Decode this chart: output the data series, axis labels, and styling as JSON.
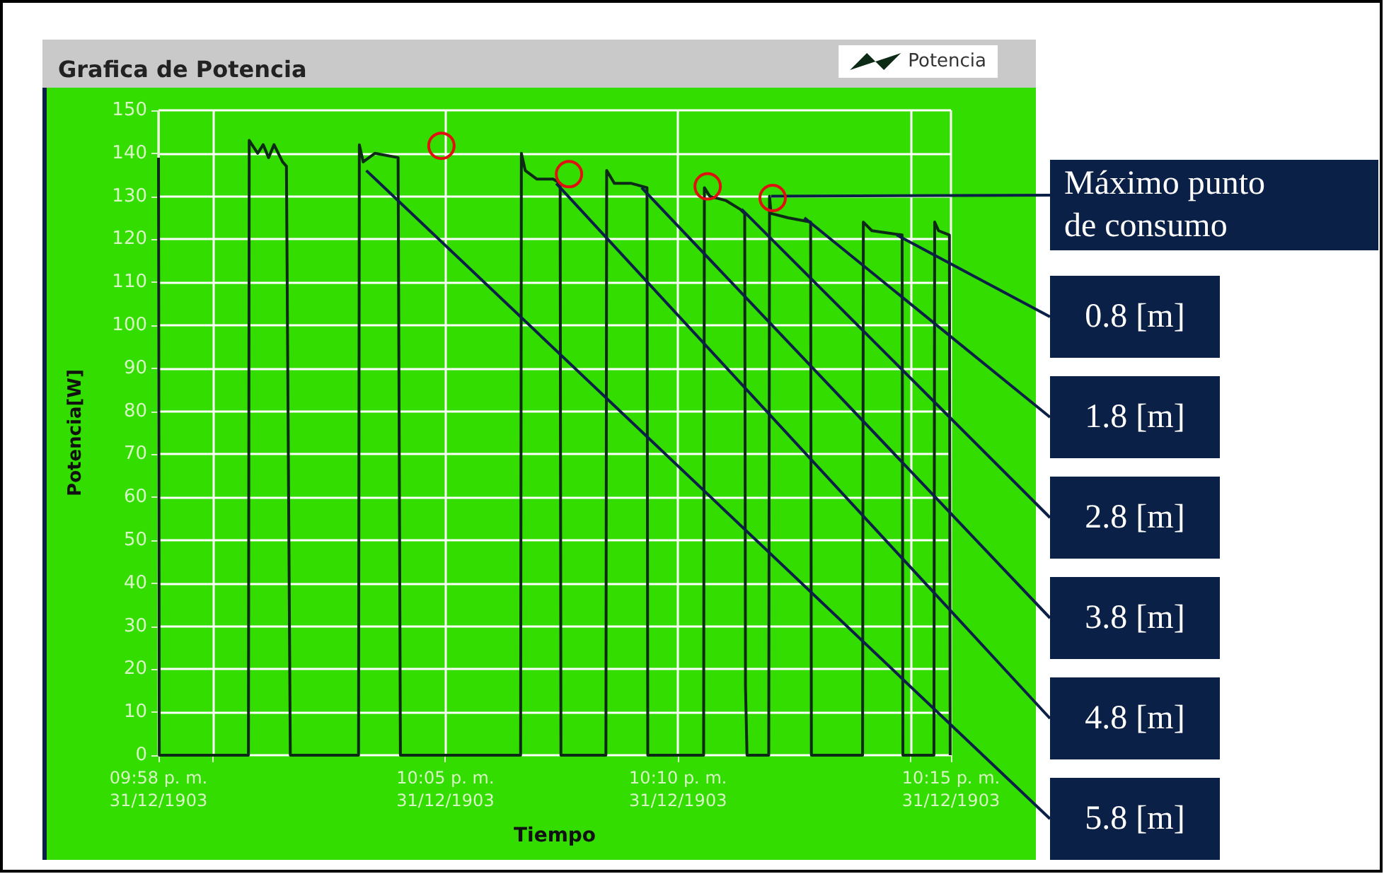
{
  "chart_data": {
    "type": "line",
    "title": "Grafica de Potencia",
    "xlabel": "Tiempo",
    "ylabel": "Potencia[W]",
    "xlim": [
      "1903-12-31T21:58:50",
      "1903-12-31T22:15:52"
    ],
    "ylim": [
      0,
      150
    ],
    "xticks": [
      {
        "value": "1903-12-31T21:58:50",
        "label": "09:58 p. m.\n31/12/1903"
      },
      {
        "value": "1903-12-31T22:00",
        "label": null
      },
      {
        "value": "1903-12-31T22:05",
        "label": "10:05 p. m.\n31/12/1903"
      },
      {
        "value": "1903-12-31T22:10",
        "label": "10:10 p. m.\n31/12/1903"
      },
      {
        "value": "1903-12-31T22:15",
        "label": null
      },
      {
        "value": "1903-12-31T22:15:52",
        "label": "10:15 p. m.\n31/12/1903"
      }
    ],
    "yticks": [
      0,
      10,
      20,
      30,
      40,
      50,
      60,
      70,
      80,
      90,
      100,
      110,
      120,
      130,
      140,
      150
    ],
    "grid": true,
    "legend": "top right",
    "marker": "none",
    "line_style": "solid",
    "series": [
      {
        "name": "Potencia",
        "color": "#0d2a16",
        "x": [
          "1903-12-31T21:58:50",
          "1903-12-31T21:58:51",
          "1903-12-31T22:00:46",
          "1903-12-31T22:00:47",
          "1903-12-31T22:00:58",
          "1903-12-31T22:01:05",
          "1903-12-31T22:01:12",
          "1903-12-31T22:01:19",
          "1903-12-31T22:01:30",
          "1903-12-31T22:01:35",
          "1903-12-31T22:01:40",
          "1903-12-31T22:03:08",
          "1903-12-31T22:03:09",
          "1903-12-31T22:03:14",
          "1903-12-31T22:03:29",
          "1903-12-31T22:03:59",
          "1903-12-31T22:04:02",
          "1903-12-31T22:06:37",
          "1903-12-31T22:06:38",
          "1903-12-31T22:06:43",
          "1903-12-31T22:06:58",
          "1903-12-31T22:07:19",
          "1903-12-31T22:07:28",
          "1903-12-31T22:07:29",
          "1903-12-31T22:08:27",
          "1903-12-31T22:08:28",
          "1903-12-31T22:08:38",
          "1903-12-31T22:09:00",
          "1903-12-31T22:09:20",
          "1903-12-31T22:09:21",
          "1903-12-31T22:10:33",
          "1903-12-31T22:10:34",
          "1903-12-31T22:10:41",
          "1903-12-31T22:11:02",
          "1903-12-31T22:11:20",
          "1903-12-31T22:11:26",
          "1903-12-31T22:11:27",
          "1903-12-31T22:11:29",
          "1903-12-31T22:11:57",
          "1903-12-31T22:11:58",
          "1903-12-31T22:12:00",
          "1903-12-31T22:12:22",
          "1903-12-31T22:12:51",
          "1903-12-31T22:12:52",
          "1903-12-31T22:13:58",
          "1903-12-31T22:13:59",
          "1903-12-31T22:14:10",
          "1903-12-31T22:14:49",
          "1903-12-31T22:14:50",
          "1903-12-31T22:15:30",
          "1903-12-31T22:15:31",
          "1903-12-31T22:15:36",
          "1903-12-31T22:15:50",
          "1903-12-31T22:15:51"
        ],
        "values": [
          139,
          0,
          0,
          143,
          140,
          142,
          139,
          142,
          138,
          137,
          0,
          0,
          142,
          138,
          140,
          139,
          0,
          0,
          140,
          136,
          134,
          134,
          133,
          0,
          0,
          136,
          133,
          133,
          132,
          0,
          0,
          132,
          130,
          129,
          127,
          126,
          16,
          0,
          0,
          130,
          126,
          125,
          124,
          0,
          0,
          124,
          122,
          121,
          0,
          0,
          124,
          122,
          121,
          0
        ]
      }
    ],
    "annotations": [
      {
        "text": "Máximo punto de consumo",
        "x": "1903-12-31T22:12:00",
        "y": 130
      },
      {
        "text": "0.8 [m]",
        "x": "1903-12-31T22:14:42",
        "y": 121
      },
      {
        "text": "1.8 [m]",
        "x": "1903-12-31T22:12:43",
        "y": 125
      },
      {
        "text": "2.8 [m]",
        "x": "1903-12-31T22:11:22",
        "y": 127
      },
      {
        "text": "3.8 [m]",
        "x": "1903-12-31T22:09:13",
        "y": 132
      },
      {
        "text": "4.8 [m]",
        "x": "1903-12-31T22:07:23",
        "y": 133
      },
      {
        "text": "5.8 [m]",
        "x": "1903-12-31T22:03:18",
        "y": 136
      }
    ]
  }
}
